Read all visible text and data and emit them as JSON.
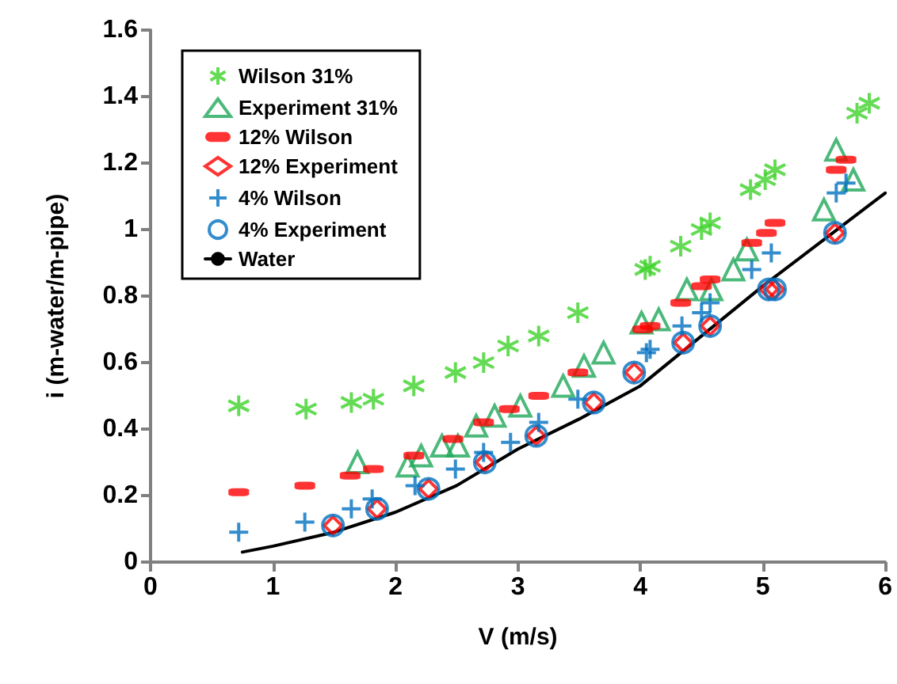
{
  "chart_data": {
    "type": "scatter",
    "xlabel": "V (m/s)",
    "ylabel": "i (m-water/m-pipe)",
    "xlim": [
      0,
      6
    ],
    "xticks": [
      0,
      1,
      2,
      3,
      4,
      5,
      6
    ],
    "ylim": [
      0,
      1.6
    ],
    "yticks": [
      0,
      0.2,
      0.4,
      0.6,
      0.8,
      1,
      1.2,
      1.4,
      1.6
    ],
    "grid": false,
    "legend": "top left",
    "series": [
      {
        "name": "Wilson 31%",
        "color": "#3fd22a",
        "x": [
          0.72,
          1.27,
          1.64,
          1.82,
          2.15,
          2.49,
          2.72,
          2.92,
          3.17,
          3.49,
          4.04,
          4.08,
          4.33,
          4.5,
          4.57,
          4.9,
          5.02,
          5.1,
          5.77,
          5.87
        ],
        "values": [
          0.47,
          0.46,
          0.48,
          0.49,
          0.53,
          0.57,
          0.6,
          0.65,
          0.68,
          0.75,
          0.88,
          0.89,
          0.95,
          1.0,
          1.02,
          1.12,
          1.15,
          1.18,
          1.35,
          1.38
        ]
      },
      {
        "name": "Experiment 31%",
        "color": "#1fa85a",
        "marker": "triangle",
        "x": [
          1.69,
          2.1,
          2.21,
          2.38,
          2.51,
          2.66,
          2.81,
          3.02,
          3.37,
          3.54,
          3.7,
          4.01,
          4.15,
          4.38,
          4.58,
          4.76,
          4.87,
          5.5,
          5.6,
          5.74
        ],
        "values": [
          0.3,
          0.29,
          0.32,
          0.35,
          0.35,
          0.41,
          0.44,
          0.47,
          0.53,
          0.59,
          0.63,
          0.72,
          0.73,
          0.82,
          0.82,
          0.88,
          0.94,
          1.06,
          1.24,
          1.15
        ]
      },
      {
        "name": "12% Wilson",
        "color": "#ff0000",
        "marker": "square",
        "x": [
          0.72,
          1.26,
          1.63,
          1.82,
          2.15,
          2.47,
          2.72,
          2.93,
          3.17,
          3.49,
          4.02,
          4.08,
          4.33,
          4.5,
          4.57,
          4.91,
          5.03,
          5.1,
          5.6,
          5.68
        ],
        "values": [
          0.21,
          0.23,
          0.26,
          0.28,
          0.32,
          0.37,
          0.42,
          0.46,
          0.5,
          0.57,
          0.7,
          0.71,
          0.78,
          0.83,
          0.85,
          0.96,
          0.99,
          1.02,
          1.18,
          1.21
        ]
      },
      {
        "name": "12% Experiment",
        "color": "#ff0000",
        "marker": "diamond",
        "x": [
          1.49,
          1.85,
          2.27,
          2.73,
          3.15,
          3.62,
          3.95,
          4.35,
          4.57,
          5.05,
          5.1,
          5.59
        ],
        "values": [
          0.11,
          0.16,
          0.22,
          0.3,
          0.38,
          0.48,
          0.57,
          0.66,
          0.71,
          0.82,
          0.82,
          0.99
        ]
      },
      {
        "name": "4% Wilson",
        "color": "#0070c0",
        "marker": "cross",
        "x": [
          0.72,
          1.26,
          1.64,
          1.81,
          2.16,
          2.49,
          2.72,
          2.94,
          3.17,
          3.49,
          4.05,
          4.08,
          4.34,
          4.5,
          4.57,
          4.91,
          5.07,
          5.6,
          5.68
        ],
        "values": [
          0.09,
          0.12,
          0.16,
          0.19,
          0.23,
          0.28,
          0.33,
          0.36,
          0.42,
          0.49,
          0.63,
          0.64,
          0.71,
          0.75,
          0.78,
          0.88,
          0.93,
          1.11,
          1.14
        ]
      },
      {
        "name": "4% Experiment",
        "color": "#0070c0",
        "marker": "circle",
        "x": [
          1.49,
          1.85,
          2.27,
          2.73,
          3.15,
          3.62,
          3.95,
          4.35,
          4.57,
          5.05,
          5.1,
          5.59
        ],
        "values": [
          0.11,
          0.16,
          0.22,
          0.3,
          0.38,
          0.48,
          0.57,
          0.66,
          0.71,
          0.82,
          0.82,
          0.99
        ]
      },
      {
        "name": "Water",
        "type": "line",
        "color": "#000000",
        "marker": "none",
        "line_style": "solid",
        "x": [
          0.75,
          1.0,
          1.5,
          2.0,
          2.5,
          3.0,
          3.5,
          4.0,
          4.5,
          5.0,
          5.5,
          6.0
        ],
        "values": [
          0.03,
          0.048,
          0.09,
          0.15,
          0.23,
          0.34,
          0.43,
          0.53,
          0.68,
          0.83,
          0.97,
          1.11
        ]
      }
    ]
  }
}
